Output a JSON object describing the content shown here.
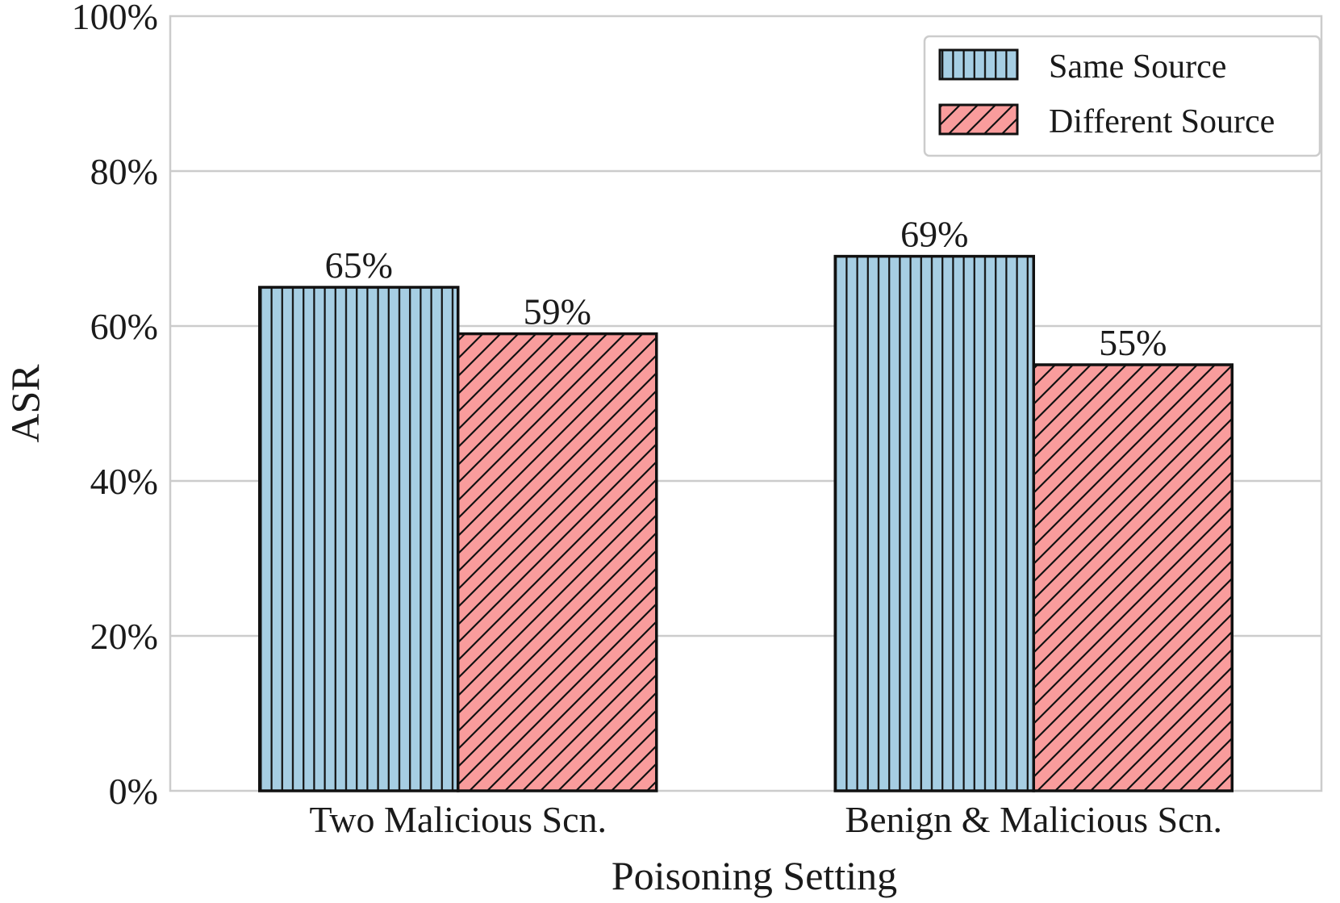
{
  "chart_data": {
    "type": "bar",
    "title": "",
    "xlabel": "Poisoning Setting",
    "ylabel": "ASR",
    "categories": [
      "Two Malicious Scn.",
      "Benign & Malicious Scn."
    ],
    "series": [
      {
        "name": "Same Source",
        "values": [
          65,
          69
        ],
        "color": "#a6cee3",
        "hatch": "vertical"
      },
      {
        "name": "Different Source",
        "values": [
          59,
          55
        ],
        "color": "#f99c9c",
        "hatch": "diagonal"
      }
    ],
    "data_labels": [
      [
        "65%",
        "69%"
      ],
      [
        "59%",
        "55%"
      ]
    ],
    "ylim": [
      0,
      100
    ],
    "yticks": [
      0,
      20,
      40,
      60,
      80,
      100
    ],
    "ytick_labels": [
      "0%",
      "20%",
      "40%",
      "60%",
      "80%",
      "100%"
    ],
    "grid": "horizontal",
    "legend_position": "top-right"
  }
}
